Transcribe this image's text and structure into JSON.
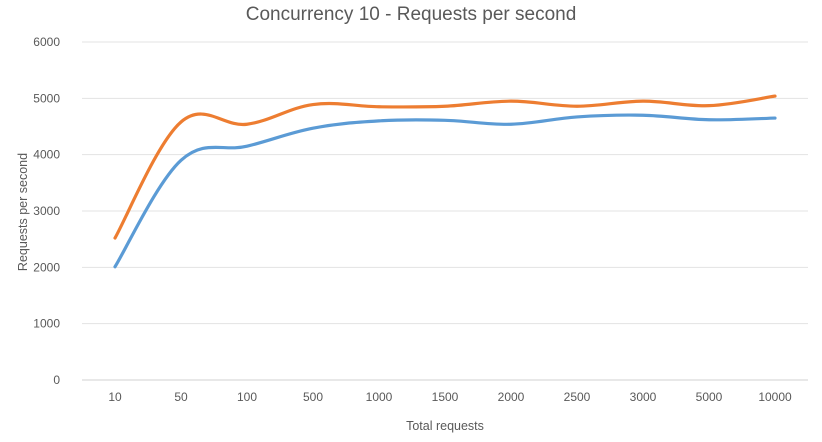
{
  "chart_data": {
    "type": "line",
    "title": "Concurrency 10 - Requests per second",
    "xlabel": "Total requests",
    "ylabel": "Requests per second",
    "categories": [
      "10",
      "50",
      "100",
      "500",
      "1000",
      "1500",
      "2000",
      "2500",
      "3000",
      "5000",
      "10000"
    ],
    "ylim": [
      0,
      6000
    ],
    "yticks": [
      0,
      1000,
      2000,
      3000,
      4000,
      5000,
      6000
    ],
    "grid": true,
    "legend": "none",
    "series": [
      {
        "color": "#5b9bd5",
        "values": [
          2010,
          3900,
          4150,
          4470,
          4600,
          4610,
          4540,
          4670,
          4700,
          4620,
          4650
        ]
      },
      {
        "color": "#ed7d31",
        "values": [
          2520,
          4580,
          4540,
          4890,
          4850,
          4860,
          4950,
          4860,
          4950,
          4870,
          5040
        ]
      }
    ]
  }
}
